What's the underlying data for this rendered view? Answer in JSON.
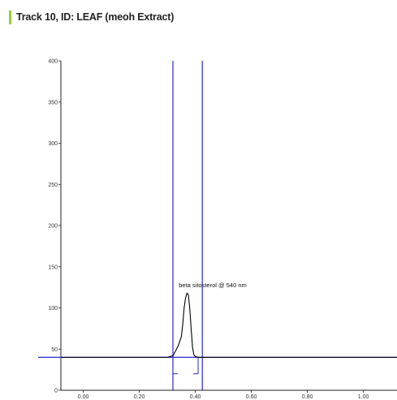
{
  "header": {
    "title": "Track 10, ID: LEAF (meoh Extract)",
    "accent_color": "#9acd32"
  },
  "chart_data": {
    "type": "line",
    "title": "Track 10, ID: LEAF (meoh Extract)",
    "xlabel": "",
    "ylabel": "",
    "xlim": [
      -0.08,
      1.12
    ],
    "ylim": [
      0,
      400
    ],
    "x_ticks": [
      "0.00",
      "0.20",
      "0.40",
      "0.60",
      "0.80",
      "1.00"
    ],
    "x_tick_values": [
      0.0,
      0.2,
      0.4,
      0.6,
      0.8,
      1.0
    ],
    "y_ticks": [
      "0",
      "50",
      "100",
      "150",
      "200",
      "250",
      "300",
      "350",
      "400"
    ],
    "y_tick_values": [
      0,
      50,
      100,
      150,
      200,
      250,
      300,
      350,
      400
    ],
    "grid": false,
    "baseline": {
      "y": 40,
      "color": "#000000",
      "overlay_color": "#2a2ad0"
    },
    "series": [
      {
        "color": "#000000",
        "x": [
          -0.08,
          0.3,
          0.32,
          0.33,
          0.34,
          0.35,
          0.355,
          0.36,
          0.365,
          0.37,
          0.375,
          0.38,
          0.385,
          0.39,
          0.395,
          0.4,
          0.41,
          0.42,
          0.43,
          1.12
        ],
        "y": [
          40,
          40,
          42,
          48,
          55,
          65,
          80,
          100,
          112,
          118,
          116,
          100,
          75,
          52,
          43,
          41,
          40,
          40,
          40,
          40
        ]
      }
    ],
    "markers": [
      {
        "x": 0.32,
        "color": "#2a2ad0"
      },
      {
        "x": 0.425,
        "color": "#2a2ad0"
      }
    ],
    "peak_bracket": {
      "x_start": 0.32,
      "x_end": 0.41,
      "y_level": 20,
      "color": "#2a2ad0"
    },
    "annotations": [
      {
        "text": "beta sitosterol @ 540 nm",
        "x": 0.37,
        "y": 128
      }
    ]
  }
}
